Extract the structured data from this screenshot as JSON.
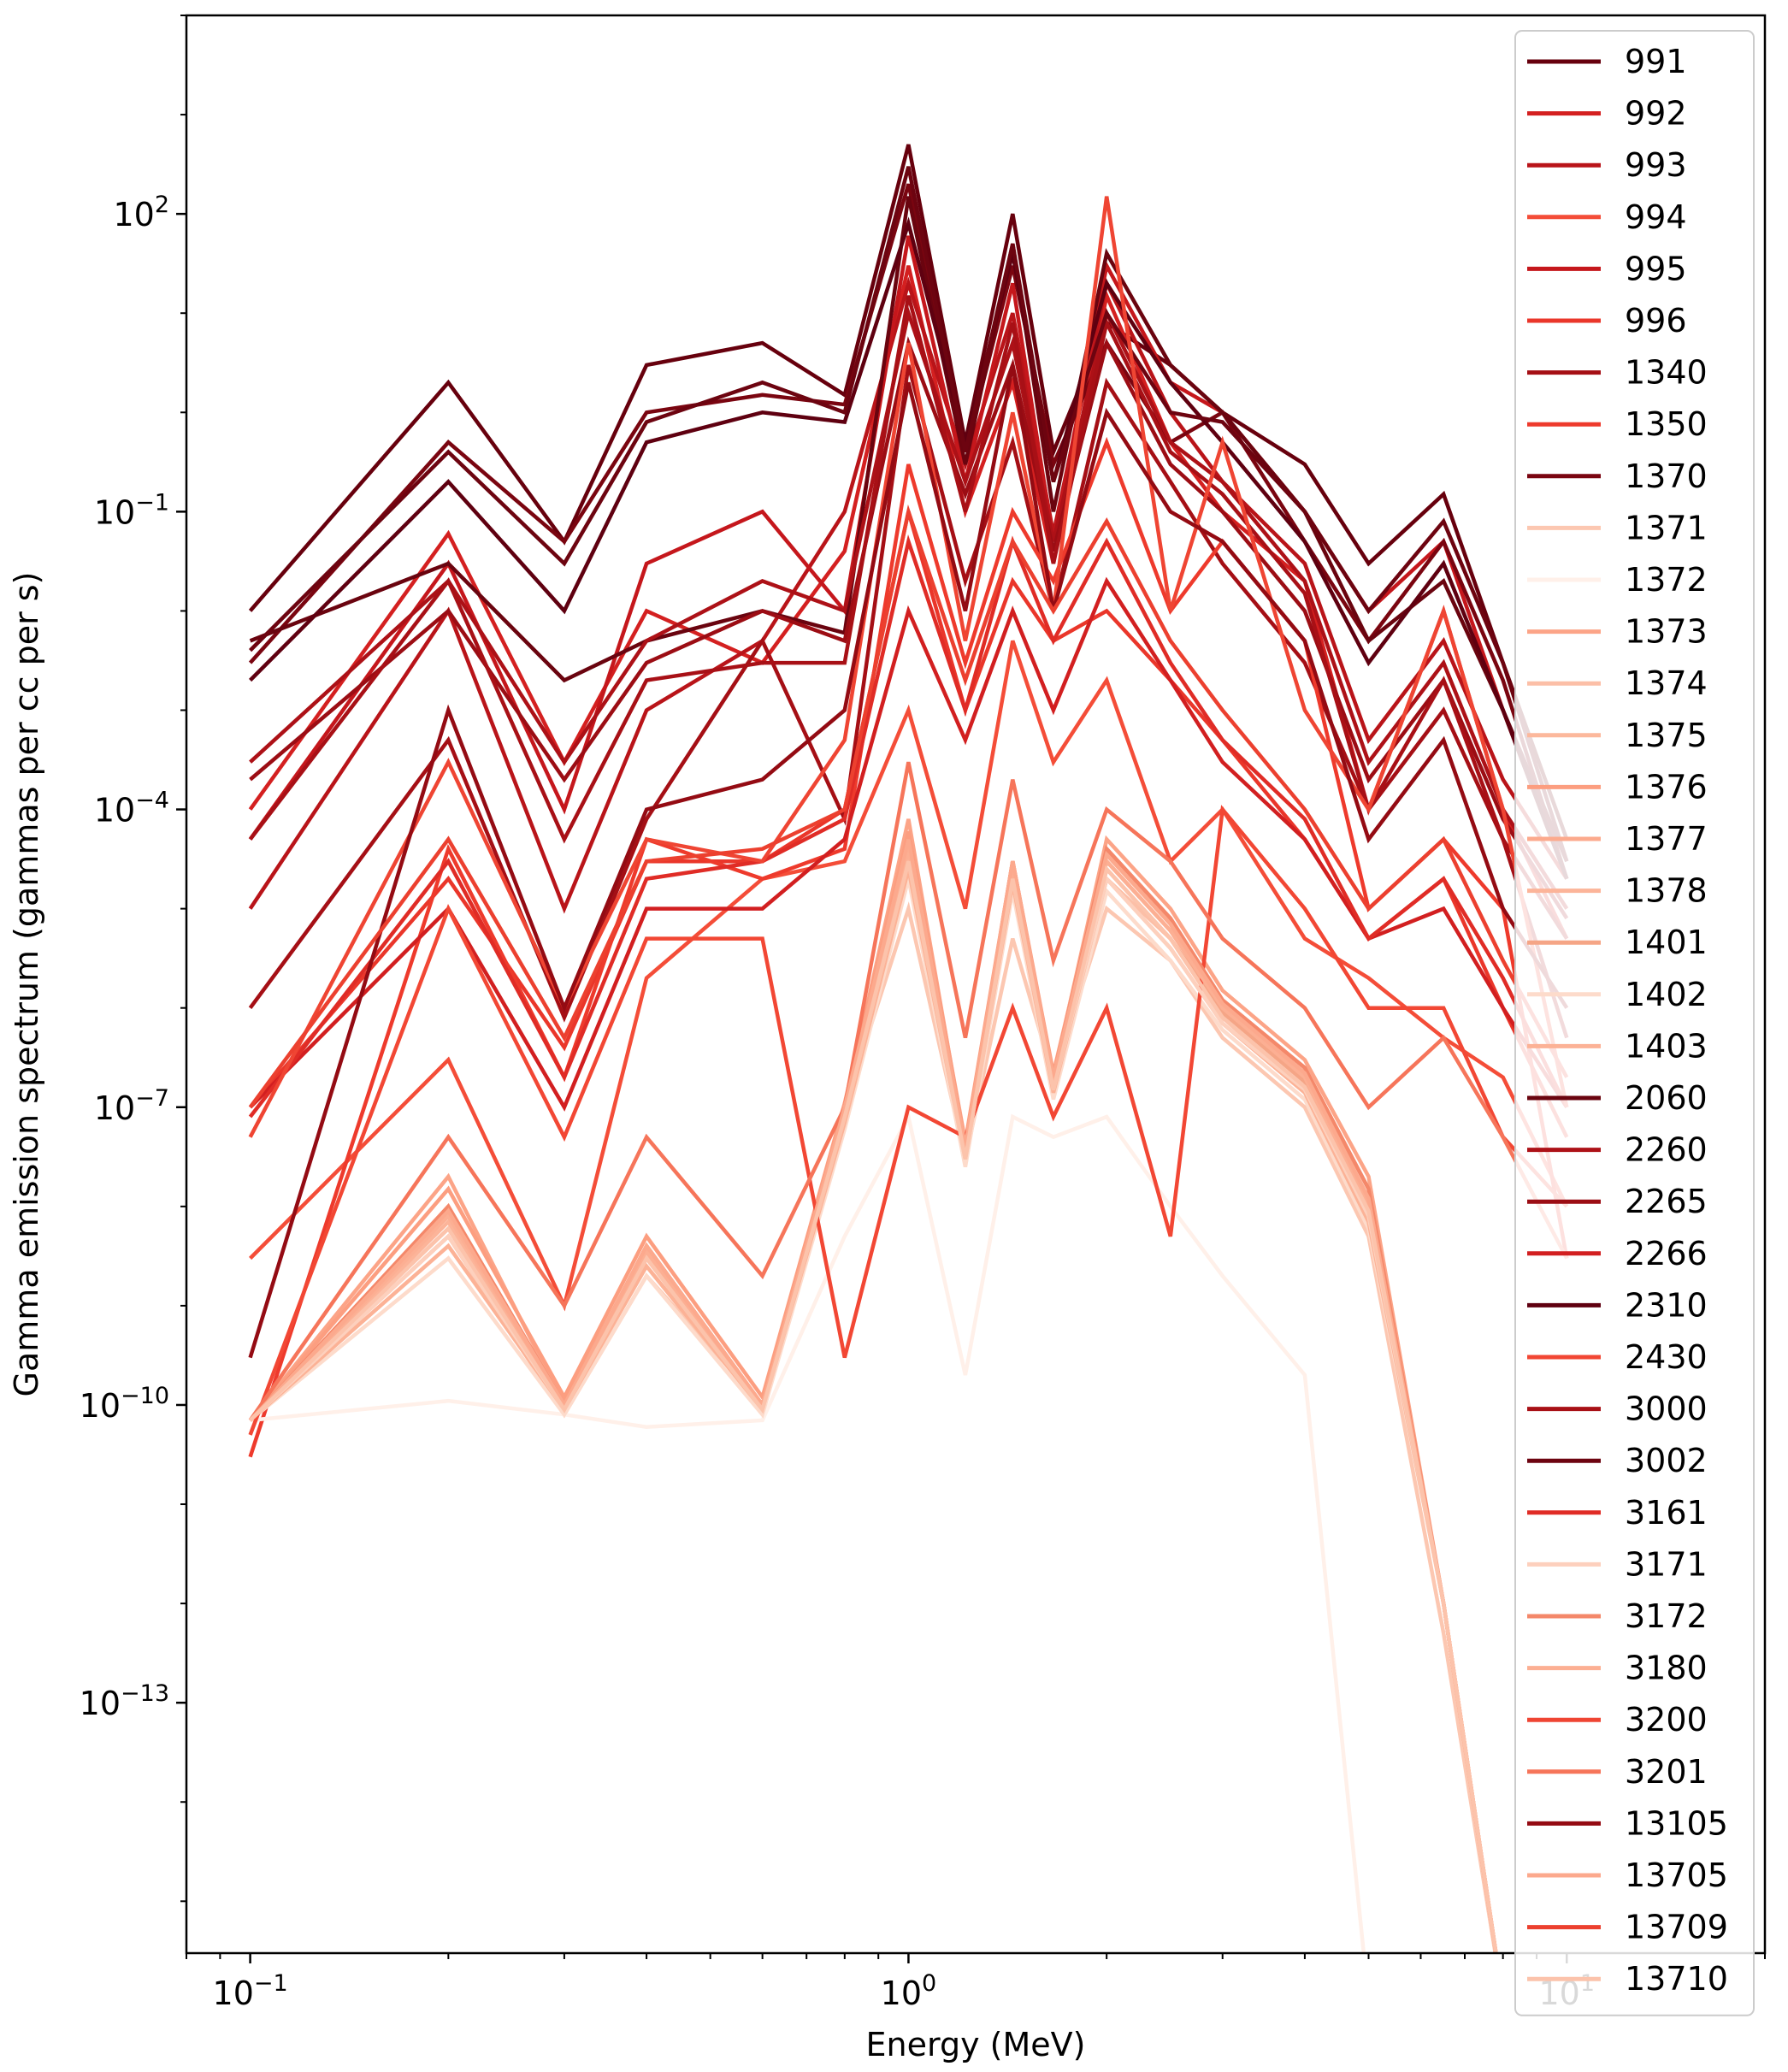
{
  "chart_data": {
    "type": "line",
    "title": "",
    "xlabel": "Energy (MeV)",
    "ylabel": "Gamma emission spectrum (gammas per cc per s)",
    "x_scale": "log",
    "y_scale": "log",
    "xlim": [
      0.08,
      20
    ],
    "ylim": [
      3e-16,
      10000.0
    ],
    "grid": false,
    "legend_placement": "right",
    "x_ticks": [
      {
        "value": 0.1,
        "base": "10",
        "exp": "−1"
      },
      {
        "value": 1,
        "base": "10",
        "exp": "0"
      },
      {
        "value": 10,
        "base": "10",
        "exp": "1"
      }
    ],
    "y_ticks": [
      {
        "value": 100.0,
        "base": "10",
        "exp": "2"
      },
      {
        "value": 0.1,
        "base": "10",
        "exp": "−1"
      },
      {
        "value": 0.0001,
        "base": "10",
        "exp": "−4"
      },
      {
        "value": 1e-07,
        "base": "10",
        "exp": "−7"
      },
      {
        "value": 1e-10,
        "base": "10",
        "exp": "−10"
      },
      {
        "value": 1e-13,
        "base": "10",
        "exp": "−13"
      }
    ],
    "x": [
      0.1,
      0.2,
      0.3,
      0.4,
      0.6,
      0.8,
      1.0,
      1.22,
      1.44,
      1.66,
      2.0,
      2.5,
      3.0,
      4.0,
      5.0,
      6.5,
      8.0,
      10.0
    ],
    "series": [
      {
        "name": "991",
        "color": "#67000d",
        "values": [
          0.01,
          2.0,
          0.05,
          3,
          5,
          1.5,
          500,
          0.5,
          100,
          0.4,
          8,
          3,
          1,
          0.3,
          0.03,
          0.15,
          0.003,
          5e-05
        ]
      },
      {
        "name": "992",
        "color": "#d42020",
        "values": [
          0.0001,
          0.06,
          0.0003,
          0.01,
          0.003,
          0.04,
          30,
          0.1,
          2,
          0.03,
          15,
          0.5,
          0.1,
          0.02,
          0.0001,
          0.01,
          0.0001,
          5e-06
        ]
      },
      {
        "name": "993",
        "color": "#b91419",
        "values": [
          1e-05,
          0.01,
          1e-05,
          0.001,
          0.005,
          0.1,
          20,
          0.3,
          10,
          0.06,
          20,
          1,
          0.2,
          0.03,
          0.0005,
          0.005,
          0.0002,
          2e-05
        ]
      },
      {
        "name": "994",
        "color": "#f44d38",
        "values": [
          3e-09,
          3e-07,
          1e-09,
          2e-06,
          2e-05,
          3e-05,
          0.001,
          1e-05,
          0.005,
          0.0003,
          0.002,
          3e-05,
          0.0001,
          5e-06,
          2e-06,
          5e-07,
          2e-07,
          1e-08
        ]
      },
      {
        "name": "995",
        "color": "#c5171c",
        "values": [
          5e-05,
          0.03,
          0.0001,
          0.03,
          0.1,
          0.01,
          60,
          0.2,
          20,
          0.05,
          30,
          2,
          1,
          0.1,
          0.01,
          0.05,
          0.001,
          2e-05
        ]
      },
      {
        "name": "996",
        "color": "#ea362a",
        "values": [
          1e-07,
          2e-05,
          4e-07,
          3e-05,
          3e-05,
          0.0001,
          0.1,
          0.001,
          0.02,
          0.005,
          0.01,
          0.002,
          0.0005,
          5e-05,
          5e-06,
          2e-05,
          1e-06,
          5e-08
        ]
      },
      {
        "name": "1340",
        "color": "#a50f15",
        "values": [
          1e-06,
          0.0005,
          8e-07,
          8e-05,
          0.005,
          8e-05,
          3,
          0.02,
          0.5,
          0.01,
          2,
          0.2,
          0.03,
          0.003,
          0.0001,
          0.001,
          5e-05,
          5e-07
        ]
      },
      {
        "name": "1350",
        "color": "#ee3a2c",
        "values": [
          3e-11,
          4e-05,
          2e-07,
          5e-05,
          2e-05,
          4e-05,
          0.3,
          0.003,
          0.1,
          0.02,
          0.5,
          0.01,
          0.05,
          0.005,
          1e-05,
          5e-05,
          1e-05,
          3e-09
        ]
      },
      {
        "name": "1370",
        "color": "#7a0510",
        "values": [
          0.003,
          0.5,
          0.05,
          1,
          1.5,
          1.2,
          200,
          0.4,
          30,
          0.3,
          5,
          0.5,
          1,
          0.05,
          0.005,
          0.05,
          0.002,
          2e-05
        ]
      },
      {
        "name": "1371",
        "color": "#fcc7b1",
        "values": [
          7e-11,
          5e-09,
          8e-11,
          2e-09,
          1e-10,
          1e-07,
          1e-05,
          3e-08,
          5e-06,
          2e-07,
          1e-05,
          3e-06,
          5e-07,
          1e-07,
          5e-09,
          5e-13,
          1e-16,
          1e-16
        ]
      },
      {
        "name": "1372",
        "color": "#fff0e9",
        "values": [
          7e-11,
          1.1e-10,
          8e-11,
          6e-11,
          7e-11,
          5e-09,
          8e-08,
          2e-10,
          8e-08,
          5e-08,
          8e-08,
          1e-08,
          2e-09,
          2e-10,
          1e-16,
          1e-16,
          1e-16,
          1e-16
        ]
      },
      {
        "name": "1373",
        "color": "#fca487",
        "values": [
          7e-11,
          2e-08,
          1e-10,
          4e-09,
          1e-10,
          1e-07,
          8e-05,
          4e-08,
          3e-05,
          2e-07,
          5e-05,
          1e-05,
          1.5e-06,
          3e-07,
          2e-08,
          1e-12,
          1e-16,
          1e-16
        ]
      },
      {
        "name": "1374",
        "color": "#fcbfa7",
        "values": [
          7e-11,
          5e-09,
          9e-11,
          3e-09,
          9e-11,
          8e-08,
          3e-05,
          3e-08,
          2e-05,
          1.5e-07,
          2e-05,
          5e-06,
          8e-07,
          1.5e-07,
          8e-09,
          1e-12,
          1e-16,
          1e-16
        ]
      },
      {
        "name": "1375",
        "color": "#fcb89c",
        "values": [
          7e-11,
          8e-09,
          1e-10,
          3e-09,
          1e-10,
          9e-08,
          5e-05,
          3.5e-08,
          2.5e-05,
          1.8e-07,
          3e-05,
          6e-06,
          1e-06,
          2e-07,
          1e-08,
          1e-12,
          1e-16,
          1e-16
        ]
      },
      {
        "name": "1376",
        "color": "#fc9e80",
        "values": [
          7e-11,
          1.5e-08,
          1.2e-10,
          5e-09,
          1.2e-10,
          1.1e-07,
          6e-05,
          4.5e-08,
          3e-05,
          2.2e-07,
          4e-05,
          8e-06,
          1.2e-06,
          2.5e-07,
          1.5e-08,
          1e-12,
          1e-16,
          1e-16
        ]
      },
      {
        "name": "1377",
        "color": "#fcaa8d",
        "values": [
          7e-11,
          1e-08,
          1e-10,
          4e-09,
          1e-10,
          1e-07,
          4e-05,
          4e-08,
          2.5e-05,
          2e-07,
          3.5e-05,
          7e-06,
          1.1e-06,
          2.2e-07,
          1.2e-08,
          1e-12,
          1e-16,
          1e-16
        ]
      },
      {
        "name": "1378",
        "color": "#fcb499",
        "values": [
          7e-11,
          7e-09,
          9e-11,
          3.5e-09,
          9e-11,
          9e-08,
          3.5e-05,
          3.5e-08,
          2.2e-05,
          1.8e-07,
          3e-05,
          6e-06,
          1e-06,
          2e-07,
          1e-08,
          1e-12,
          1e-16,
          1e-16
        ]
      },
      {
        "name": "1401",
        "color": "#f5a586",
        "values": [
          7e-11,
          6e-09,
          9e-11,
          3e-09,
          9e-11,
          8e-08,
          3e-05,
          3e-08,
          2e-05,
          1.5e-07,
          2.5e-05,
          5e-06,
          9e-07,
          1.8e-07,
          9e-09,
          1e-12,
          1e-16,
          1e-16
        ]
      },
      {
        "name": "1402",
        "color": "#fddbcb",
        "values": [
          7e-11,
          3e-09,
          8e-11,
          2e-09,
          8e-11,
          6e-08,
          2e-05,
          2.5e-08,
          1.5e-05,
          1.2e-07,
          1.5e-05,
          3e-06,
          6e-07,
          1.2e-07,
          6e-09,
          1e-12,
          1e-16,
          1e-16
        ]
      },
      {
        "name": "1403",
        "color": "#fcb296",
        "values": [
          7e-11,
          4e-09,
          9e-11,
          2.5e-09,
          9e-11,
          7e-08,
          2.5e-05,
          3e-08,
          1.8e-05,
          1.4e-07,
          2e-05,
          4e-06,
          7e-07,
          1.4e-07,
          7e-09,
          1e-12,
          1e-16,
          1e-16
        ]
      },
      {
        "name": "2060",
        "color": "#6a040f",
        "values": [
          0.005,
          0.03,
          0.002,
          0.005,
          0.01,
          0.006,
          150,
          0.3,
          50,
          0.1,
          40,
          3,
          1,
          0.1,
          0.005,
          0.02,
          0.001,
          3e-05
        ]
      },
      {
        "name": "2260",
        "color": "#ad1117",
        "values": [
          0.0003,
          0.02,
          0.0003,
          0.005,
          0.02,
          0.01,
          10,
          0.2,
          5,
          0.05,
          10,
          0.5,
          0.2,
          0.02,
          0.0003,
          0.003,
          0.0001,
          1e-05
        ]
      },
      {
        "name": "2265",
        "color": "#9c0d14",
        "values": [
          0.0002,
          0.01,
          0.0002,
          0.003,
          0.01,
          0.005,
          5,
          0.15,
          3,
          0.04,
          5,
          0.3,
          0.1,
          0.01,
          0.0002,
          0.002,
          8e-05,
          8e-06
        ]
      },
      {
        "name": "2266",
        "color": "#d21f20",
        "values": [
          1e-07,
          1e-05,
          1e-07,
          1e-05,
          1e-05,
          5e-05,
          0.01,
          0.0005,
          0.01,
          0.001,
          0.02,
          0.002,
          0.0003,
          5e-05,
          5e-06,
          1e-05,
          1e-06,
          1e-07
        ]
      },
      {
        "name": "2310",
        "color": "#5f0010",
        "values": [
          0.002,
          0.2,
          0.01,
          0.5,
          1,
          0.8,
          80,
          0.5,
          40,
          0.2,
          20,
          2,
          0.5,
          0.05,
          0.003,
          0.03,
          0.001,
          2e-05
        ]
      },
      {
        "name": "2430",
        "color": "#f24734",
        "values": [
          5e-11,
          1e-05,
          5e-08,
          5e-06,
          5e-06,
          3e-10,
          1e-07,
          5e-08,
          1e-06,
          8e-08,
          1e-06,
          5e-09,
          0.0001,
          1e-05,
          1e-06,
          1e-06,
          5e-08,
          1e-08
        ]
      },
      {
        "name": "3000",
        "color": "#a81016",
        "values": [
          5e-05,
          0.02,
          5e-05,
          0.002,
          0.003,
          0.003,
          15,
          0.1,
          8,
          0.03,
          8,
          0.4,
          0.15,
          0.015,
          0.0001,
          0.002,
          5e-05,
          5e-06
        ]
      },
      {
        "name": "3002",
        "color": "#6d0410",
        "values": [
          0.004,
          0.4,
          0.03,
          0.8,
          2,
          1,
          300,
          0.4,
          50,
          0.2,
          10,
          1,
          0.8,
          0.1,
          0.01,
          0.08,
          0.003,
          3e-05
        ]
      },
      {
        "name": "3161",
        "color": "#e02c26",
        "values": [
          8e-08,
          3e-05,
          2e-07,
          2e-05,
          3e-05,
          8e-05,
          0.05,
          0.001,
          0.05,
          0.005,
          0.05,
          0.003,
          0.0005,
          8e-05,
          5e-06,
          2e-05,
          2e-06,
          1e-07
        ]
      },
      {
        "name": "3171",
        "color": "#fdd0bd",
        "values": [
          7e-11,
          5e-09,
          9e-11,
          3e-09,
          9e-11,
          8e-08,
          3e-05,
          3e-08,
          2e-05,
          1.5e-07,
          2e-05,
          4e-06,
          7e-07,
          1.5e-07,
          8e-09,
          1e-12,
          1e-16,
          1e-16
        ]
      },
      {
        "name": "3172",
        "color": "#f4886a",
        "values": [
          7e-11,
          1e-08,
          1e-10,
          4e-09,
          1e-10,
          1e-07,
          5e-05,
          4e-08,
          3e-05,
          2e-07,
          4e-05,
          8e-06,
          1.2e-06,
          2.5e-07,
          1.5e-08,
          1e-12,
          1e-16,
          1e-16
        ]
      },
      {
        "name": "3180",
        "color": "#fcaf93",
        "values": [
          7e-11,
          8e-09,
          1e-10,
          3.5e-09,
          1e-10,
          9e-08,
          4e-05,
          3.5e-08,
          2.5e-05,
          1.8e-07,
          3e-05,
          6e-06,
          1e-06,
          2e-07,
          1e-08,
          1e-12,
          1e-16,
          1e-16
        ]
      },
      {
        "name": "3200",
        "color": "#ef4533",
        "values": [
          5e-08,
          0.0003,
          1e-06,
          5e-05,
          3e-05,
          0.0005,
          5,
          0.005,
          1,
          0.01,
          150,
          0.01,
          0.5,
          0.001,
          0.0001,
          0.01,
          0.0001,
          1e-07
        ]
      },
      {
        "name": "3201",
        "color": "#f6755a",
        "values": [
          7e-11,
          5e-08,
          1e-09,
          5e-08,
          2e-09,
          1e-07,
          0.0003,
          5e-07,
          0.0002,
          3e-06,
          0.0001,
          3e-05,
          5e-06,
          1e-06,
          1e-07,
          5e-07,
          5e-08,
          3e-09
        ]
      },
      {
        "name": "13105",
        "color": "#940b13",
        "values": [
          3e-10,
          0.001,
          1e-06,
          0.0001,
          0.0002,
          0.001,
          2,
          0.01,
          3,
          0.01,
          1,
          0.1,
          0.05,
          0.005,
          5e-05,
          0.0005,
          1e-05,
          1e-06
        ]
      },
      {
        "name": "13705",
        "color": "#fca98d",
        "values": [
          7e-11,
          9e-09,
          1e-10,
          4e-09,
          1e-10,
          1e-07,
          5e-05,
          4e-08,
          3e-05,
          2e-07,
          3.5e-05,
          7e-06,
          1.1e-06,
          2.2e-07,
          1.2e-08,
          1e-12,
          1e-16,
          1e-16
        ]
      },
      {
        "name": "13709",
        "color": "#ec402f",
        "values": [
          1e-07,
          5e-05,
          5e-07,
          3e-05,
          4e-05,
          0.0001,
          0.1,
          0.002,
          0.05,
          0.01,
          0.08,
          0.005,
          0.001,
          0.0001,
          1e-05,
          5e-05,
          3e-06,
          2e-07
        ]
      },
      {
        "name": "13710",
        "color": "#fcc3ab",
        "values": [
          7e-11,
          6e-09,
          9e-11,
          3e-09,
          9e-11,
          8e-08,
          3e-05,
          3e-08,
          2e-05,
          1.5e-07,
          2.5e-05,
          5e-06,
          8e-07,
          1.6e-07,
          9e-09,
          1e-12,
          1e-16,
          1e-16
        ]
      }
    ]
  }
}
